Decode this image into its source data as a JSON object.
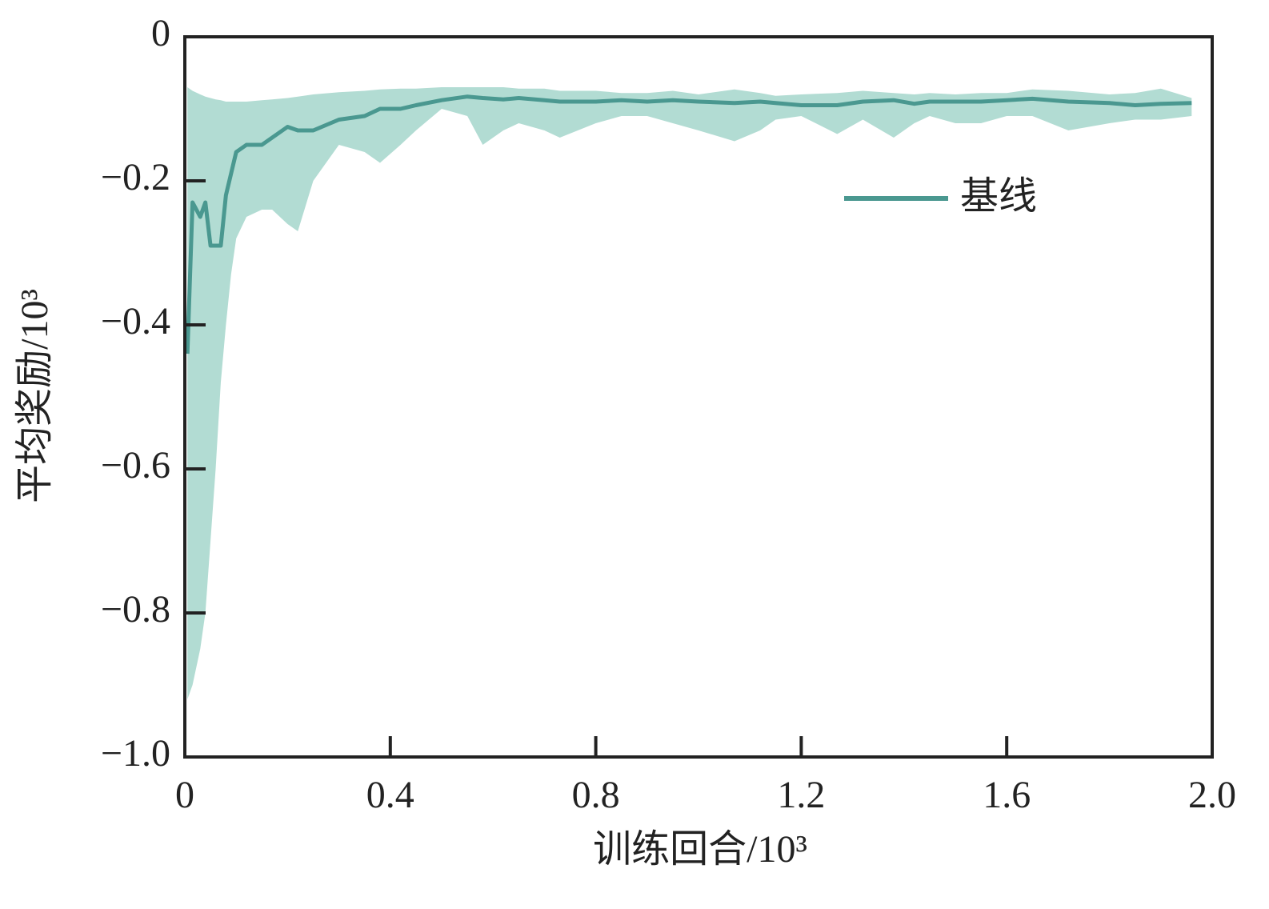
{
  "chart_data": {
    "type": "line",
    "xlabel": "训练回合/10³",
    "ylabel": "平均奖励/10³",
    "xlim": [
      0,
      2
    ],
    "ylim": [
      -1,
      0
    ],
    "xticks": [
      0,
      0.4,
      0.8,
      1.2,
      1.6,
      {
        "value": 2,
        "label": "2.0"
      }
    ],
    "yticks": [
      0,
      {
        "value": -0.2,
        "label": "−0.2"
      },
      {
        "value": -0.4,
        "label": "−0.4"
      },
      {
        "value": -0.6,
        "label": "−0.6"
      },
      {
        "value": -0.8,
        "label": "−0.8"
      },
      {
        "value": -1,
        "label": "−1.0"
      }
    ],
    "grid": false,
    "legend": "upper right",
    "x": [
      0.005,
      0.015,
      0.03,
      0.04,
      0.05,
      0.06,
      0.07,
      0.08,
      0.09,
      0.1,
      0.12,
      0.15,
      0.17,
      0.2,
      0.22,
      0.25,
      0.3,
      0.35,
      0.38,
      0.42,
      0.45,
      0.5,
      0.55,
      0.58,
      0.62,
      0.65,
      0.7,
      0.73,
      0.8,
      0.85,
      0.9,
      0.95,
      1.0,
      1.07,
      1.12,
      1.15,
      1.2,
      1.27,
      1.32,
      1.38,
      1.42,
      1.45,
      1.5,
      1.55,
      1.6,
      1.65,
      1.72,
      1.8,
      1.85,
      1.9,
      1.96
    ],
    "series": [
      {
        "name": "基线",
        "color": "#4a9890",
        "values": [
          -0.44,
          -0.23,
          -0.25,
          -0.23,
          -0.29,
          -0.29,
          -0.29,
          -0.22,
          -0.19,
          -0.16,
          -0.15,
          -0.15,
          -0.14,
          -0.125,
          -0.13,
          -0.13,
          -0.115,
          -0.11,
          -0.1,
          -0.1,
          -0.095,
          -0.088,
          -0.083,
          -0.085,
          -0.087,
          -0.085,
          -0.088,
          -0.09,
          -0.09,
          -0.088,
          -0.09,
          -0.088,
          -0.09,
          -0.092,
          -0.09,
          -0.092,
          -0.095,
          -0.095,
          -0.09,
          -0.088,
          -0.093,
          -0.09,
          -0.09,
          -0.09,
          -0.088,
          -0.086,
          -0.09,
          -0.092,
          -0.095,
          -0.093,
          -0.092
        ]
      }
    ],
    "band": {
      "color": "#b2dcd3",
      "upper": [
        -0.07,
        -0.075,
        -0.08,
        -0.083,
        -0.085,
        -0.087,
        -0.088,
        -0.09,
        -0.09,
        -0.09,
        -0.09,
        -0.088,
        -0.087,
        -0.085,
        -0.083,
        -0.08,
        -0.077,
        -0.075,
        -0.073,
        -0.072,
        -0.072,
        -0.07,
        -0.07,
        -0.07,
        -0.07,
        -0.072,
        -0.072,
        -0.075,
        -0.075,
        -0.078,
        -0.078,
        -0.075,
        -0.08,
        -0.073,
        -0.078,
        -0.082,
        -0.08,
        -0.078,
        -0.075,
        -0.078,
        -0.08,
        -0.078,
        -0.08,
        -0.078,
        -0.078,
        -0.073,
        -0.075,
        -0.08,
        -0.078,
        -0.072,
        -0.085
      ],
      "lower": [
        -0.92,
        -0.9,
        -0.85,
        -0.8,
        -0.7,
        -0.6,
        -0.48,
        -0.4,
        -0.33,
        -0.28,
        -0.25,
        -0.24,
        -0.24,
        -0.26,
        -0.27,
        -0.2,
        -0.15,
        -0.16,
        -0.175,
        -0.15,
        -0.13,
        -0.1,
        -0.11,
        -0.15,
        -0.13,
        -0.12,
        -0.13,
        -0.14,
        -0.12,
        -0.11,
        -0.11,
        -0.12,
        -0.13,
        -0.145,
        -0.13,
        -0.115,
        -0.11,
        -0.135,
        -0.115,
        -0.14,
        -0.12,
        -0.11,
        -0.12,
        -0.12,
        -0.11,
        -0.11,
        -0.13,
        -0.12,
        -0.115,
        -0.115,
        -0.11
      ]
    }
  }
}
